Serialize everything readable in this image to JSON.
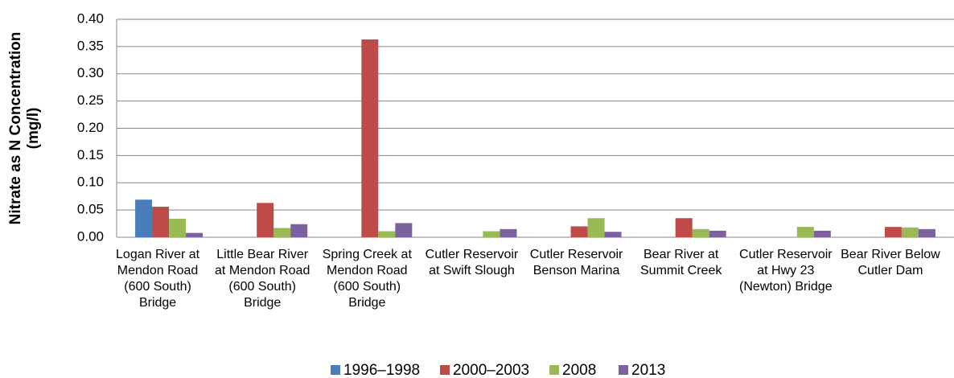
{
  "chart_data": {
    "type": "bar",
    "y_label": [
      "Nitrate as N Concentration",
      "(mg/l)"
    ],
    "categories": [
      "Logan River at Mendon Road (600 South) Bridge",
      "Little Bear River at Mendon Road (600 South) Bridge",
      "Spring Creek at Mendon Road (600 South) Bridge",
      "Cutler Reservoir at Swift Slough",
      "Cutler Reservoir Benson Marina",
      "Bear River at Summit Creek",
      "Cutler Reservoir at Hwy 23 (Newton) Bridge",
      "Bear River Below Cutler Dam"
    ],
    "series": [
      {
        "name": "1996–1998",
        "color": "#4a7ebb",
        "values": [
          0.069,
          null,
          null,
          null,
          null,
          null,
          null,
          null
        ]
      },
      {
        "name": "2000–2003",
        "color": "#be4b48",
        "values": [
          0.056,
          0.063,
          0.363,
          null,
          0.02,
          0.035,
          null,
          0.019
        ]
      },
      {
        "name": "2008",
        "color": "#98b954",
        "values": [
          0.034,
          0.017,
          0.011,
          0.011,
          0.035,
          0.015,
          0.019,
          0.018
        ]
      },
      {
        "name": "2013",
        "color": "#7d60a0",
        "values": [
          0.008,
          0.024,
          0.026,
          0.015,
          0.01,
          0.012,
          0.012,
          0.015
        ]
      }
    ],
    "ylim": [
      0,
      0.4
    ],
    "yticks": [
      {
        "value": 0,
        "label": "0.00"
      },
      {
        "value": 0.05,
        "label": "0.05"
      },
      {
        "value": 0.1,
        "label": "0.10"
      },
      {
        "value": 0.15,
        "label": "0.15"
      },
      {
        "value": 0.2,
        "label": "0.20"
      },
      {
        "value": 0.25,
        "label": "0.25"
      },
      {
        "value": 0.3,
        "label": "0.30"
      },
      {
        "value": 0.35,
        "label": "0.35"
      },
      {
        "value": 0.4,
        "label": "0.40"
      }
    ],
    "grid": true,
    "legend": "bottom"
  }
}
